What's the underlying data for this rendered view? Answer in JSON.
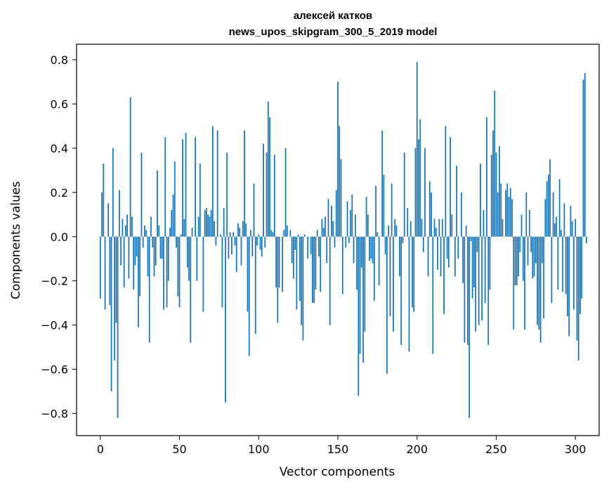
{
  "chart_data": {
    "type": "bar",
    "title": [
      "алексей катков",
      "news_upos_skipgram_300_5_2019 model"
    ],
    "xlabel": "Vector components",
    "ylabel": "Components values",
    "xlim": [
      -15,
      315
    ],
    "ylim": [
      -0.9,
      0.87
    ],
    "xticks": [
      0,
      50,
      100,
      150,
      200,
      250,
      300
    ],
    "yticks": [
      -0.8,
      -0.6,
      -0.4,
      -0.2,
      0.0,
      0.2,
      0.4,
      0.6,
      0.8
    ],
    "ytick_labels": [
      "−0.8",
      "−0.6",
      "−0.4",
      "−0.2",
      "0.0",
      "0.2",
      "0.4",
      "0.6",
      "0.8"
    ],
    "grid": false,
    "bar_color": "#1f77b4",
    "x_start": 0,
    "values": [
      -0.28,
      0.2,
      0.33,
      -0.33,
      0.0,
      0.15,
      -0.31,
      -0.7,
      0.4,
      -0.56,
      -0.39,
      -0.82,
      0.21,
      -0.13,
      0.08,
      -0.23,
      0.05,
      0.1,
      -0.19,
      0.63,
      0.09,
      -0.24,
      -0.13,
      -0.09,
      -0.41,
      -0.27,
      0.38,
      -0.05,
      0.05,
      0.03,
      -0.18,
      -0.48,
      0.09,
      -0.05,
      -0.18,
      -0.13,
      0.3,
      0.05,
      -0.1,
      -0.1,
      -0.33,
      0.45,
      -0.32,
      -0.2,
      0.04,
      0.12,
      0.19,
      0.34,
      -0.05,
      -0.27,
      -0.32,
      0.01,
      0.44,
      0.08,
      0.47,
      -0.14,
      -0.2,
      -0.48,
      0.04,
      0.0,
      0.45,
      -0.2,
      0.09,
      0.33,
      0.0,
      -0.34,
      0.12,
      0.13,
      0.1,
      0.09,
      0.12,
      0.5,
      0.07,
      -0.04,
      0.48,
      0.0,
      0.01,
      -0.32,
      0.13,
      -0.75,
      0.38,
      -0.1,
      0.02,
      -0.08,
      0.02,
      -0.04,
      -0.16,
      0.06,
      0.04,
      -0.13,
      0.07,
      0.48,
      0.06,
      -0.34,
      -0.54,
      0.03,
      -0.09,
      0.24,
      -0.44,
      -0.04,
      0.01,
      -0.06,
      -0.09,
      0.42,
      -0.05,
      0.38,
      0.61,
      0.54,
      0.03,
      0.02,
      0.37,
      -0.23,
      -0.39,
      -0.23,
      0.0,
      -0.25,
      0.03,
      0.4,
      0.05,
      0.0,
      0.03,
      -0.12,
      -0.19,
      -0.06,
      -0.33,
      0.01,
      -0.29,
      -0.4,
      -0.47,
      0.01,
      0.0,
      -0.1,
      0.0,
      -0.08,
      -0.3,
      -0.3,
      -0.24,
      0.03,
      -0.09,
      -0.25,
      0.08,
      0.04,
      0.09,
      -0.12,
      0.17,
      -0.4,
      0.14,
      0.07,
      -0.05,
      0.21,
      0.7,
      0.5,
      0.35,
      -0.26,
      0.0,
      -0.05,
      0.16,
      -0.03,
      0.12,
      0.19,
      -0.12,
      0.1,
      -0.24,
      -0.72,
      -0.53,
      -0.14,
      -0.57,
      -0.43,
      0.18,
      0.1,
      -0.11,
      -0.1,
      -0.12,
      -0.29,
      0.23,
      0.02,
      -0.22,
      0.0,
      0.48,
      0.28,
      -0.08,
      -0.62,
      0.05,
      -0.36,
      0.24,
      -0.43,
      0.08,
      0.05,
      0.0,
      -0.18,
      -0.49,
      -0.03,
      0.38,
      0.0,
      0.13,
      -0.52,
      0.07,
      -0.32,
      -0.34,
      0.4,
      0.79,
      0.44,
      0.53,
      0.08,
      -0.07,
      0.4,
      0.0,
      -0.18,
      0.25,
      0.2,
      -0.53,
      0.08,
      0.04,
      -0.15,
      0.08,
      -0.18,
      0.08,
      -0.35,
      0.5,
      -0.1,
      -0.14,
      0.45,
      0.1,
      0.0,
      -0.18,
      0.32,
      -0.1,
      0.0,
      0.2,
      -0.21,
      -0.48,
      0.05,
      -0.49,
      -0.82,
      -0.02,
      -0.28,
      -0.23,
      -0.43,
      -0.07,
      -0.4,
      0.33,
      -0.38,
      0.12,
      -0.3,
      0.54,
      -0.49,
      -0.24,
      0.37,
      0.48,
      0.66,
      0.38,
      0.2,
      0.41,
      0.24,
      0.08,
      0.0,
      0.21,
      0.24,
      0.18,
      0.22,
      0.17,
      -0.42,
      -0.22,
      -0.22,
      -0.18,
      -0.07,
      0.1,
      -0.2,
      -0.42,
      0.2,
      -0.13,
      0.12,
      -0.07,
      -0.19,
      -0.18,
      -0.12,
      -0.4,
      -0.42,
      -0.48,
      -0.12,
      -0.37,
      0.17,
      0.25,
      0.28,
      0.35,
      -0.3,
      0.2,
      0.06,
      0.09,
      -0.24,
      0.26,
      0.03,
      -0.25,
      0.15,
      -0.26,
      -0.36,
      -0.45,
      0.14,
      0.07,
      -0.33,
      0.08,
      -0.47,
      -0.56,
      -0.35,
      -0.28,
      0.71,
      0.74,
      -0.03
    ]
  }
}
